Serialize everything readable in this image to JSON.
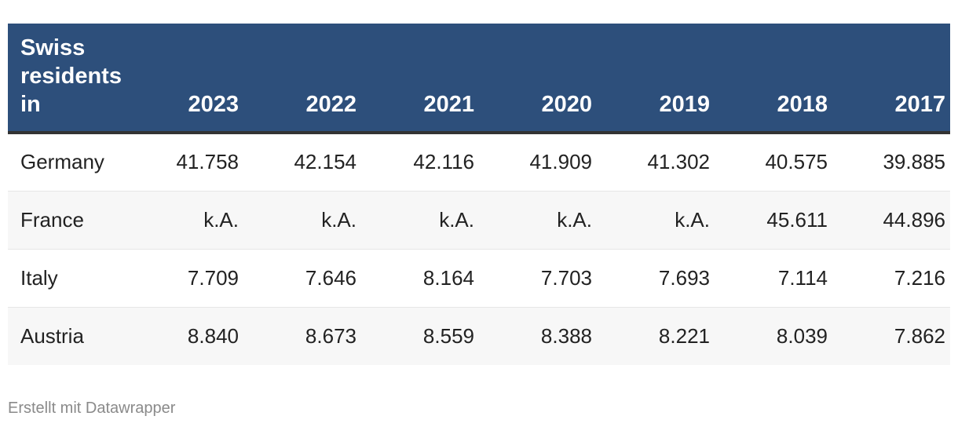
{
  "chart_data": {
    "type": "table",
    "header_label": "Swiss residents in",
    "columns": [
      "2023",
      "2022",
      "2021",
      "2020",
      "2019",
      "2018",
      "2017"
    ],
    "rows": [
      {
        "label": "Germany",
        "values": [
          "41.758",
          "42.154",
          "42.116",
          "41.909",
          "41.302",
          "40.575",
          "39.885"
        ]
      },
      {
        "label": "France",
        "values": [
          "k.A.",
          "k.A.",
          "k.A.",
          "k.A.",
          "k.A.",
          "45.611",
          "44.896"
        ]
      },
      {
        "label": "Italy",
        "values": [
          "7.709",
          "7.646",
          "8.164",
          "7.703",
          "7.693",
          "7.114",
          "7.216"
        ]
      },
      {
        "label": "Austria",
        "values": [
          "8.840",
          "8.673",
          "8.559",
          "8.388",
          "8.221",
          "8.039",
          "7.862"
        ]
      }
    ]
  },
  "colors": {
    "header_background": "#2d4f7b",
    "header_text": "#ffffff",
    "alt_row_background": "#f7f7f7"
  },
  "footer": {
    "credit": "Erstellt mit Datawrapper"
  }
}
